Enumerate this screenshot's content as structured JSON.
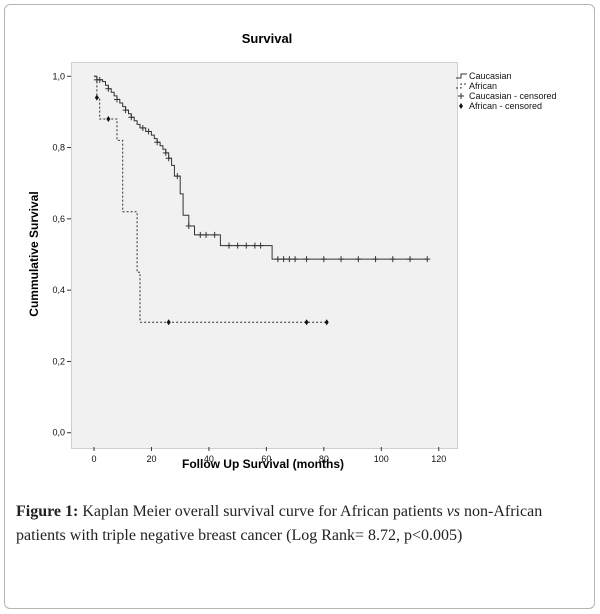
{
  "chart_data": {
    "type": "line",
    "subtype": "kaplan-meier",
    "title": "Survival",
    "xlabel": "Follow Up Survival (months)",
    "ylabel": "Cummulative Survival",
    "xlim": [
      -8,
      126
    ],
    "ylim": [
      -0.04,
      1.04
    ],
    "x_ticks": [
      0,
      20,
      40,
      60,
      80,
      100,
      120
    ],
    "x_tick_labels": [
      "0",
      "20",
      "40",
      "60",
      "80",
      "100",
      "120"
    ],
    "y_ticks": [
      0.0,
      0.2,
      0.4,
      0.6,
      0.8,
      1.0
    ],
    "y_tick_labels": [
      "0,0",
      "0,2",
      "0,4",
      "0,6",
      "0,8",
      "1,0"
    ],
    "legend_position": "top-right",
    "grid": false,
    "series": [
      {
        "name": "Caucasian",
        "style": "solid",
        "color": "#333333",
        "steps": [
          [
            0,
            1.0
          ],
          [
            1,
            0.99
          ],
          [
            3,
            0.985
          ],
          [
            4,
            0.975
          ],
          [
            5,
            0.965
          ],
          [
            6,
            0.955
          ],
          [
            7,
            0.945
          ],
          [
            8,
            0.935
          ],
          [
            9,
            0.925
          ],
          [
            10,
            0.915
          ],
          [
            11,
            0.905
          ],
          [
            12,
            0.895
          ],
          [
            13,
            0.885
          ],
          [
            14,
            0.875
          ],
          [
            15,
            0.865
          ],
          [
            16,
            0.855
          ],
          [
            18,
            0.845
          ],
          [
            20,
            0.835
          ],
          [
            21,
            0.825
          ],
          [
            22,
            0.815
          ],
          [
            23,
            0.805
          ],
          [
            24,
            0.795
          ],
          [
            25,
            0.785
          ],
          [
            26,
            0.77
          ],
          [
            27,
            0.75
          ],
          [
            28,
            0.72
          ],
          [
            30,
            0.67
          ],
          [
            31,
            0.61
          ],
          [
            33,
            0.58
          ],
          [
            35,
            0.555
          ],
          [
            44,
            0.525
          ],
          [
            62,
            0.487
          ],
          [
            116,
            0.487
          ]
        ],
        "censored": [
          [
            1,
            0.99
          ],
          [
            2,
            0.99
          ],
          [
            5,
            0.965
          ],
          [
            8,
            0.935
          ],
          [
            11,
            0.905
          ],
          [
            13,
            0.885
          ],
          [
            17,
            0.855
          ],
          [
            19,
            0.845
          ],
          [
            22,
            0.815
          ],
          [
            25,
            0.785
          ],
          [
            26,
            0.77
          ],
          [
            29,
            0.72
          ],
          [
            33,
            0.58
          ],
          [
            37,
            0.555
          ],
          [
            39,
            0.555
          ],
          [
            42,
            0.555
          ],
          [
            47,
            0.525
          ],
          [
            50,
            0.525
          ],
          [
            53,
            0.525
          ],
          [
            56,
            0.525
          ],
          [
            58,
            0.525
          ],
          [
            64,
            0.487
          ],
          [
            66,
            0.487
          ],
          [
            68,
            0.487
          ],
          [
            70,
            0.487
          ],
          [
            74,
            0.487
          ],
          [
            80,
            0.487
          ],
          [
            86,
            0.487
          ],
          [
            92,
            0.487
          ],
          [
            98,
            0.487
          ],
          [
            104,
            0.487
          ],
          [
            110,
            0.487
          ],
          [
            116,
            0.487
          ]
        ]
      },
      {
        "name": "African",
        "style": "dashed",
        "color": "#333333",
        "steps": [
          [
            0,
            1.0
          ],
          [
            1,
            0.94
          ],
          [
            2,
            0.88
          ],
          [
            7,
            0.88
          ],
          [
            8,
            0.82
          ],
          [
            10,
            0.62
          ],
          [
            14,
            0.62
          ],
          [
            15,
            0.45
          ],
          [
            16,
            0.31
          ],
          [
            81,
            0.31
          ]
        ],
        "censored": [
          [
            1,
            0.94
          ],
          [
            5,
            0.88
          ],
          [
            26,
            0.31
          ],
          [
            74,
            0.31
          ],
          [
            81,
            0.31
          ]
        ]
      }
    ],
    "legend_entries": [
      "Caucasian",
      "African",
      "Caucasian - censored",
      "African - censored"
    ]
  },
  "caption": {
    "label": "Figure 1:",
    "text_part1": " Kaplan Meier overall survival curve for African patients ",
    "italic": "vs",
    "text_part2": " non-African patients with triple negative breast cancer (Log Rank= 8.72, p<0.005)"
  }
}
